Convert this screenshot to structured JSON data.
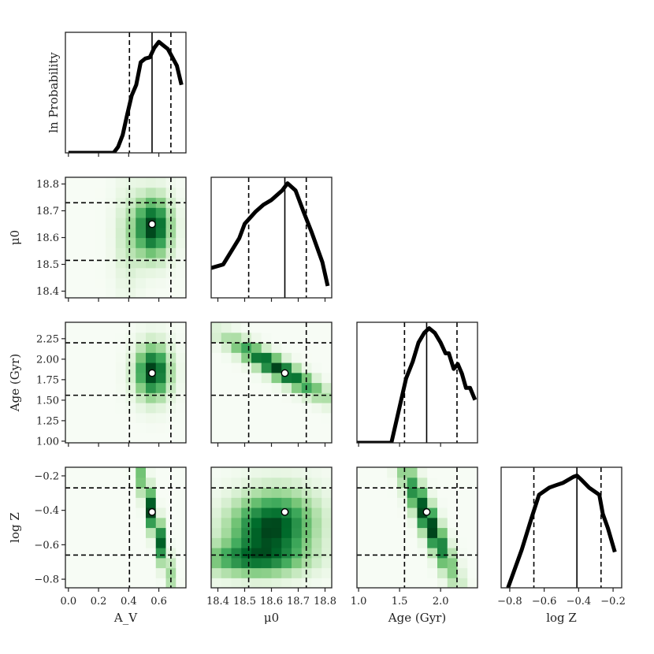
{
  "chart_data": {
    "type": "corner",
    "params": [
      {
        "key": "av",
        "label": "A_V",
        "range": [
          -0.02,
          0.78
        ],
        "ticks": [
          0.0,
          0.2,
          0.4,
          0.6
        ],
        "tick_labels": [
          "0.0",
          "0.2",
          "0.4",
          "0.6"
        ],
        "median": 0.555,
        "q_low": 0.405,
        "q_high": 0.68
      },
      {
        "key": "mu0",
        "label": "μ0",
        "range": [
          18.375,
          18.825
        ],
        "ticks": [
          18.4,
          18.5,
          18.6,
          18.7,
          18.8
        ],
        "tick_labels": [
          "18.4",
          "18.5",
          "18.6",
          "18.7",
          "18.8"
        ],
        "median": 18.65,
        "q_low": 18.515,
        "q_high": 18.73
      },
      {
        "key": "age",
        "label": "Age (Gyr)",
        "range": [
          0.98,
          2.45
        ],
        "ticks": [
          1.0,
          1.5,
          2.0
        ],
        "tick_labels": [
          "1.0",
          "1.5",
          "2.0"
        ],
        "median": 1.83,
        "q_low": 1.56,
        "q_high": 2.2
      },
      {
        "key": "logz",
        "label": "log Z",
        "range": [
          -0.85,
          -0.15
        ],
        "ticks": [
          -0.8,
          -0.6,
          -0.4,
          -0.2
        ],
        "tick_labels": [
          "−0.8",
          "−0.6",
          "−0.4",
          "−0.2"
        ],
        "median": -0.41,
        "q_low": -0.66,
        "q_high": -0.27
      }
    ],
    "row_labels": [
      {
        "label": "ln  Probability"
      },
      {
        "label": "μ0",
        "ticks": [
          18.4,
          18.5,
          18.6,
          18.7,
          18.8
        ],
        "tick_labels": [
          "18.4",
          "18.5",
          "18.6",
          "18.7",
          "18.8"
        ]
      },
      {
        "label": "Age (Gyr)",
        "ticks": [
          1.0,
          1.25,
          1.5,
          1.75,
          2.0,
          2.25
        ],
        "tick_labels": [
          "1.00",
          "1.25",
          "1.50",
          "1.75",
          "2.00",
          "2.25"
        ]
      },
      {
        "label": "log Z",
        "ticks": [
          -0.8,
          -0.6,
          -0.4,
          -0.2
        ],
        "tick_labels": [
          "−0.8",
          "−0.6",
          "−0.4",
          "−0.2"
        ]
      }
    ],
    "marginals": [
      {
        "param": "av",
        "x": [
          0.0,
          0.3,
          0.33,
          0.36,
          0.39,
          0.42,
          0.45,
          0.48,
          0.51,
          0.54,
          0.57,
          0.6,
          0.63,
          0.66,
          0.69,
          0.72,
          0.75
        ],
        "y": [
          0.0,
          0.0,
          0.05,
          0.15,
          0.32,
          0.48,
          0.57,
          0.76,
          0.79,
          0.8,
          0.88,
          0.93,
          0.9,
          0.87,
          0.8,
          0.73,
          0.57
        ]
      },
      {
        "param": "mu0",
        "x": [
          18.375,
          18.42,
          18.48,
          18.5,
          18.54,
          18.57,
          18.6,
          18.64,
          18.66,
          18.69,
          18.72,
          18.75,
          18.79,
          18.81
        ],
        "y": [
          0.25,
          0.28,
          0.5,
          0.62,
          0.72,
          0.78,
          0.82,
          0.9,
          0.96,
          0.9,
          0.72,
          0.55,
          0.3,
          0.1
        ]
      },
      {
        "param": "age",
        "x": [
          0.98,
          1.4,
          1.5,
          1.58,
          1.66,
          1.73,
          1.8,
          1.86,
          1.93,
          2.0,
          2.06,
          2.1,
          2.16,
          2.21,
          2.26,
          2.31,
          2.36,
          2.42
        ],
        "y": [
          0.0,
          0.0,
          0.3,
          0.54,
          0.68,
          0.84,
          0.92,
          0.96,
          0.92,
          0.84,
          0.75,
          0.75,
          0.62,
          0.66,
          0.58,
          0.46,
          0.46,
          0.36
        ]
      },
      {
        "param": "logz",
        "x": [
          -0.81,
          -0.73,
          -0.67,
          -0.63,
          -0.57,
          -0.53,
          -0.49,
          -0.43,
          -0.41,
          -0.38,
          -0.34,
          -0.28,
          -0.26,
          -0.23,
          -0.19
        ],
        "y": [
          0.0,
          0.32,
          0.6,
          0.78,
          0.84,
          0.86,
          0.88,
          0.93,
          0.94,
          0.9,
          0.84,
          0.78,
          0.62,
          0.5,
          0.3
        ]
      }
    ],
    "joint": [
      {
        "xparam": "av",
        "yparam": "mu0",
        "color_scale": "greens",
        "components": [
          {
            "x": 0.56,
            "y": 18.64,
            "sx": 0.075,
            "sy": 0.07,
            "rho": 0.0,
            "w": 1.0
          }
        ],
        "extra_low": [
          {
            "x": 0.4,
            "y": 18.6,
            "sx": 0.06,
            "sy": 0.12,
            "w": 0.15
          }
        ]
      },
      {
        "xparam": "mu0",
        "yparam": "age",
        "color_scale": "greens",
        "components": [
          {
            "x": 18.62,
            "y": 1.9,
            "sx": 0.11,
            "sy": 0.22,
            "rho": -0.92,
            "w": 1.0
          }
        ]
      },
      {
        "xparam": "av",
        "yparam": "age",
        "color_scale": "greens",
        "components": [
          {
            "x": 0.56,
            "y": 1.85,
            "sx": 0.07,
            "sy": 0.2,
            "rho": 0.0,
            "w": 1.0
          }
        ]
      },
      {
        "xparam": "av",
        "yparam": "logz",
        "color_scale": "greens",
        "components": [
          {
            "x": 0.57,
            "y": -0.46,
            "sx": 0.065,
            "sy": 0.2,
            "rho": -0.93,
            "w": 1.0
          }
        ]
      },
      {
        "xparam": "mu0",
        "yparam": "logz",
        "color_scale": "greens",
        "components": [
          {
            "x": 18.6,
            "y": -0.5,
            "sx": 0.1,
            "sy": 0.13,
            "rho": 0.1,
            "w": 1.0
          },
          {
            "x": 18.52,
            "y": -0.68,
            "sx": 0.13,
            "sy": 0.06,
            "rho": 0.0,
            "w": 0.55
          }
        ]
      },
      {
        "xparam": "age",
        "yparam": "logz",
        "color_scale": "greens",
        "components": [
          {
            "x": 1.85,
            "y": -0.46,
            "sx": 0.2,
            "sy": 0.2,
            "rho": -0.92,
            "w": 1.0
          }
        ]
      }
    ],
    "best_fit": {
      "av": 0.555,
      "mu0": 18.65,
      "age": 1.83,
      "logz": -0.41
    },
    "grid": false
  }
}
